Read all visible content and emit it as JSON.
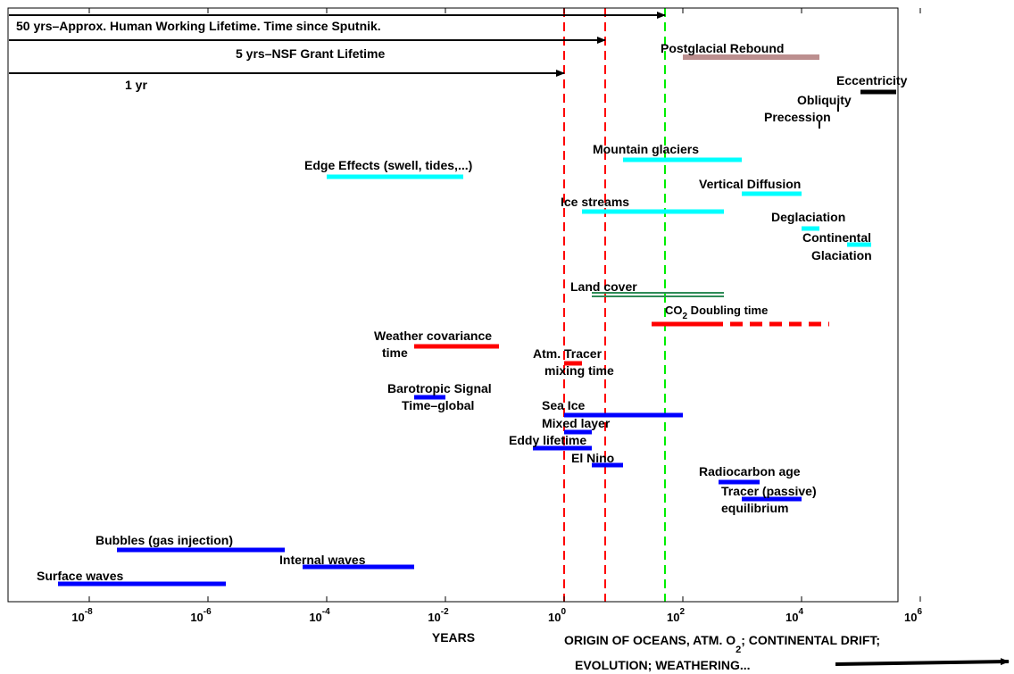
{
  "chart_data": {
    "type": "timeline-range",
    "xscale": "log10",
    "xlim": [
      1e-09,
      1000000.0
    ],
    "x_ticks": [
      {
        "exp": -8,
        "base": "10",
        "sup": "-8"
      },
      {
        "exp": -6,
        "base": "10",
        "sup": "-6"
      },
      {
        "exp": -4,
        "base": "10",
        "sup": "-4"
      },
      {
        "exp": -2,
        "base": "10",
        "sup": "-2"
      },
      {
        "exp": 0,
        "base": "10",
        "sup": "0"
      },
      {
        "exp": 2,
        "base": "10",
        "sup": "2"
      },
      {
        "exp": 4,
        "base": "10",
        "sup": "4"
      },
      {
        "exp": 6,
        "base": "10",
        "sup": "6"
      }
    ],
    "xlabel": "YEARS",
    "footer": {
      "line1_main": "ORIGIN OF OCEANS, ATM. O",
      "line1_sub": "2",
      "line1_rest": "; CONTINENTAL DRIFT;",
      "line2": "EVOLUTION; WEATHERING..."
    },
    "reference_lines": [
      {
        "x": 1,
        "color": "#ff0000",
        "style": "dashed"
      },
      {
        "x": 5,
        "color": "#ff0000",
        "style": "dashed"
      },
      {
        "x": 50,
        "color": "#00ee00",
        "style": "dashed"
      }
    ],
    "arrows": [
      {
        "label": "50 yrs–Approx. Human Working Lifetime. Time since Sputnik.",
        "x_end": 50
      },
      {
        "label": "5 yrs–NSF Grant Lifetime",
        "x_end": 5
      },
      {
        "label": "1 yr",
        "x_end": 1
      }
    ],
    "ranges": [
      {
        "label": "Postglacial Rebound",
        "x": [
          100,
          20000
        ],
        "color": "#bc8f8f"
      },
      {
        "label": "Eccentricity",
        "x": [
          100000,
          400000
        ],
        "color": "#000000"
      },
      {
        "label": "Obliquity",
        "x": [
          41000,
          41000
        ],
        "color": "#000000"
      },
      {
        "label": "Precession",
        "x": [
          20000,
          20000
        ],
        "color": "#000000"
      },
      {
        "label": "Mountain glaciers",
        "x": [
          10,
          1000
        ],
        "color": "#00ffff"
      },
      {
        "label": "Edge Effects (swell, tides,...)",
        "x": [
          0.0001,
          0.02
        ],
        "color": "#00ffff"
      },
      {
        "label": "Vertical Diffusion",
        "x": [
          1000,
          10000
        ],
        "color": "#00ffff"
      },
      {
        "label": "Ice streams",
        "x": [
          2,
          500
        ],
        "color": "#00ffff"
      },
      {
        "label": "Deglaciation",
        "x": [
          10000,
          20000
        ],
        "color": "#00ffff"
      },
      {
        "label_lines": [
          "Continental",
          "Glaciation"
        ],
        "x": [
          60000,
          150000
        ],
        "color": "#00ffff"
      },
      {
        "label": "Land cover",
        "x": [
          3,
          500
        ],
        "color": "#2e8b57"
      },
      {
        "label": "CO₂ Doubling time",
        "x": [
          30,
          300
        ],
        "color": "#ff0000",
        "dashed_extension_to": 30000
      },
      {
        "label_lines": [
          "Weather covariance",
          "time"
        ],
        "x": [
          0.003,
          0.08
        ],
        "color": "#ff0000"
      },
      {
        "label_lines": [
          "Atm. Tracer",
          "mixing time"
        ],
        "x": [
          1,
          2
        ],
        "color": "#ff0000"
      },
      {
        "label_lines": [
          "Barotropic Signal",
          "Time–global"
        ],
        "x": [
          0.003,
          0.01
        ],
        "color": "#0000ff"
      },
      {
        "label": "Sea Ice",
        "x": [
          1,
          100
        ],
        "color": "#0000ff"
      },
      {
        "label": "Mixed layer",
        "x": [
          1,
          3
        ],
        "color": "#0000ff"
      },
      {
        "label": "Eddy lifetime",
        "x": [
          0.3,
          3
        ],
        "color": "#0000ff"
      },
      {
        "label": "El Nino",
        "x": [
          3,
          10
        ],
        "color": "#0000ff"
      },
      {
        "label": "Radiocarbon age",
        "x": [
          400,
          2000
        ],
        "color": "#0000ff"
      },
      {
        "label_lines": [
          "Tracer (passive)",
          "equilibrium"
        ],
        "x": [
          1000,
          10000
        ],
        "color": "#0000ff"
      },
      {
        "label": "Bubbles (gas injection)",
        "x": [
          3e-08,
          2e-05
        ],
        "color": "#0000ff"
      },
      {
        "label": "Internal waves",
        "x": [
          4e-05,
          0.003
        ],
        "color": "#0000ff"
      },
      {
        "label": "Surface waves",
        "x": [
          3e-09,
          2e-06
        ],
        "color": "#0000ff"
      }
    ]
  }
}
